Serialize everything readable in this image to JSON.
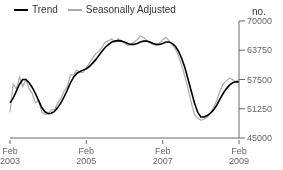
{
  "chart_data": {
    "type": "line",
    "ylabel": "no.",
    "categories": [
      "Feb\n2003",
      null,
      null,
      null,
      null,
      null,
      null,
      null,
      null,
      null,
      null,
      null,
      null,
      null,
      null,
      null,
      null,
      null,
      null,
      null,
      null,
      null,
      null,
      null,
      "Feb\n2005",
      null,
      null,
      null,
      null,
      null,
      null,
      null,
      null,
      null,
      null,
      null,
      null,
      null,
      null,
      null,
      null,
      null,
      null,
      null,
      null,
      null,
      null,
      null,
      "Feb\n2007",
      null,
      null,
      null,
      null,
      null,
      null,
      null,
      null,
      null,
      null,
      null,
      null,
      null,
      null,
      null,
      null,
      null,
      null,
      null,
      null,
      null,
      null,
      null,
      "Feb\n2009"
    ],
    "series": [
      {
        "name": "Trend",
        "color": "#000000",
        "values": [
          52500,
          53500,
          55000,
          56500,
          57500,
          57500,
          56800,
          55800,
          54500,
          53000,
          51500,
          50600,
          50200,
          50300,
          50700,
          51500,
          52500,
          53800,
          55200,
          56800,
          58000,
          58800,
          59200,
          59500,
          59800,
          60300,
          61000,
          61800,
          62700,
          63600,
          64400,
          65000,
          65500,
          65700,
          65800,
          65700,
          65500,
          65200,
          65000,
          65000,
          65200,
          65500,
          65700,
          65700,
          65500,
          65200,
          65000,
          65000,
          65200,
          65500,
          65500,
          65200,
          64600,
          63500,
          62000,
          60000,
          57500,
          55000,
          52500,
          50500,
          49500,
          49500,
          49800,
          50300,
          51000,
          52000,
          53300,
          54500,
          55500,
          56300,
          56800,
          57000,
          57000
        ]
      },
      {
        "name": "Seasonally Adjusted",
        "color": "#aaaaaa",
        "values": [
          50500,
          56500,
          55500,
          58000,
          56000,
          57500,
          55500,
          54500,
          52500,
          53000,
          50500,
          50000,
          50200,
          51000,
          51000,
          52500,
          53500,
          55000,
          56000,
          58500,
          58500,
          59500,
          59000,
          59000,
          60000,
          61000,
          62000,
          63000,
          63500,
          64500,
          65500,
          65800,
          66200,
          65500,
          66200,
          65800,
          65300,
          64800,
          65000,
          65500,
          66000,
          66800,
          66500,
          65800,
          65300,
          65000,
          64800,
          65200,
          66000,
          66500,
          65800,
          65000,
          64000,
          62500,
          60500,
          58000,
          55500,
          52500,
          50000,
          49200,
          48800,
          49000,
          49500,
          50200,
          51500,
          53000,
          55000,
          56500,
          57200,
          57800,
          57500,
          57000,
          57500
        ]
      }
    ],
    "ylim": [
      45000,
      70000
    ],
    "yticks": [
      45000,
      51250,
      57500,
      63750,
      70000
    ],
    "legend": "upper left"
  }
}
